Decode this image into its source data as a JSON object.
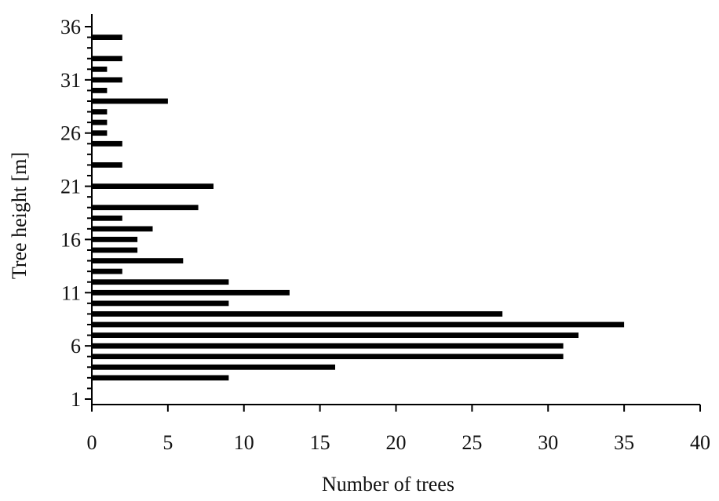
{
  "chart_data": {
    "type": "bar",
    "orientation": "horizontal",
    "title": "",
    "xlabel": "Number of trees",
    "ylabel": "Tree height [m]",
    "xlim": [
      0,
      40
    ],
    "ylim": [
      1,
      36
    ],
    "x_ticks": [
      0,
      5,
      10,
      15,
      20,
      25,
      30,
      35,
      40
    ],
    "y_ticks": [
      1,
      6,
      11,
      16,
      21,
      26,
      31,
      36
    ],
    "grid": false,
    "legend": "none",
    "bar_color": "#000000",
    "categories": [
      1,
      2,
      3,
      4,
      5,
      6,
      7,
      8,
      9,
      10,
      11,
      12,
      13,
      14,
      15,
      16,
      17,
      18,
      19,
      20,
      21,
      22,
      23,
      24,
      25,
      26,
      27,
      28,
      29,
      30,
      31,
      32,
      33,
      34,
      35,
      36
    ],
    "values": [
      0,
      0,
      9,
      16,
      31,
      31,
      32,
      35,
      27,
      9,
      13,
      9,
      2,
      6,
      3,
      3,
      4,
      2,
      7,
      0,
      8,
      0,
      2,
      0,
      2,
      1,
      1,
      1,
      5,
      1,
      2,
      1,
      2,
      0,
      2,
      0
    ]
  }
}
